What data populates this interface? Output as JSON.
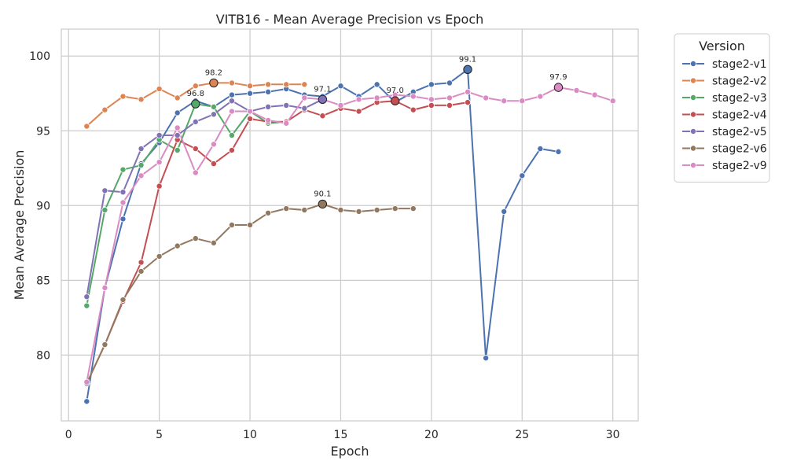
{
  "chart_data": {
    "type": "line",
    "title": "VITB16 - Mean Average Precision vs Epoch",
    "xlabel": "Epoch",
    "ylabel": "Mean Average Precision",
    "xlim": [
      -0.4,
      31.4
    ],
    "ylim": [
      75.6,
      101.8
    ],
    "xticks": [
      0,
      5,
      10,
      15,
      20,
      25,
      30
    ],
    "yticks": [
      80,
      85,
      90,
      95,
      100
    ],
    "grid": true,
    "legend_title": "Version",
    "legend_position": "outside-right",
    "series": [
      {
        "name": "stage2-v1",
        "color": "#4c72b0",
        "x": [
          1,
          2,
          3,
          4,
          5,
          6,
          7,
          8,
          9,
          10,
          11,
          12,
          13,
          14,
          15,
          16,
          17,
          18,
          19,
          20,
          21,
          22,
          23,
          24,
          25,
          26,
          27
        ],
        "y": [
          76.9,
          84.5,
          89.1,
          92.8,
          94.2,
          96.2,
          97.0,
          96.6,
          97.4,
          97.5,
          97.6,
          97.8,
          97.4,
          97.3,
          98.0,
          97.3,
          98.1,
          96.9,
          97.6,
          98.1,
          98.2,
          99.1,
          79.8,
          89.6,
          92.0,
          93.8,
          93.6
        ],
        "best": {
          "x": 22,
          "y": 99.1,
          "label": "99.1"
        }
      },
      {
        "name": "stage2-v2",
        "color": "#dd8452",
        "x": [
          1,
          2,
          3,
          4,
          5,
          6,
          7,
          8,
          9,
          10,
          11,
          12,
          13
        ],
        "y": [
          95.3,
          96.4,
          97.3,
          97.1,
          97.8,
          97.2,
          98.0,
          98.2,
          98.2,
          98.0,
          98.1,
          98.1,
          98.1
        ],
        "best": {
          "x": 8,
          "y": 98.2,
          "label": "98.2"
        }
      },
      {
        "name": "stage2-v3",
        "color": "#55a868",
        "x": [
          1,
          2,
          3,
          4,
          5,
          6,
          7,
          8,
          9,
          10,
          11,
          12
        ],
        "y": [
          83.3,
          89.7,
          92.4,
          92.7,
          94.4,
          93.7,
          96.8,
          96.6,
          94.7,
          96.3,
          95.5,
          95.6
        ],
        "best": {
          "x": 7,
          "y": 96.8,
          "label": "96.8"
        }
      },
      {
        "name": "stage2-v4",
        "color": "#c44e52",
        "x": [
          1,
          2,
          3,
          4,
          5,
          6,
          7,
          8,
          9,
          10,
          11,
          12,
          13,
          14,
          15,
          16,
          17,
          18,
          19,
          20,
          21,
          22
        ],
        "y": [
          78.1,
          80.7,
          83.6,
          86.2,
          91.3,
          94.4,
          93.8,
          92.8,
          93.7,
          95.8,
          95.6,
          95.6,
          96.4,
          96.0,
          96.5,
          96.3,
          96.9,
          97.0,
          96.4,
          96.7,
          96.7,
          96.9
        ],
        "best": {
          "x": 18,
          "y": 97.0,
          "label": "97.0"
        }
      },
      {
        "name": "stage2-v5",
        "color": "#8172b3",
        "x": [
          1,
          2,
          3,
          4,
          5,
          6,
          7,
          8,
          9,
          10,
          11,
          12,
          13,
          14
        ],
        "y": [
          83.9,
          91.0,
          90.9,
          93.8,
          94.7,
          94.7,
          95.6,
          96.1,
          97.0,
          96.3,
          96.6,
          96.7,
          96.5,
          97.1
        ],
        "best": {
          "x": 14,
          "y": 97.1,
          "label": "97.1"
        }
      },
      {
        "name": "stage2-v6",
        "color": "#937860",
        "x": [
          1,
          2,
          3,
          4,
          5,
          6,
          7,
          8,
          9,
          10,
          11,
          12,
          13,
          14,
          15,
          16,
          17,
          18,
          19
        ],
        "y": [
          78.1,
          80.7,
          83.7,
          85.6,
          86.6,
          87.3,
          87.8,
          87.5,
          88.7,
          88.7,
          89.5,
          89.8,
          89.7,
          90.1,
          89.7,
          89.6,
          89.7,
          89.8,
          89.8
        ],
        "best": {
          "x": 14,
          "y": 90.1,
          "label": "90.1"
        }
      },
      {
        "name": "stage2-v9",
        "color": "#da8bc3",
        "x": [
          1,
          2,
          3,
          4,
          5,
          6,
          7,
          8,
          9,
          10,
          11,
          12,
          13,
          14,
          15,
          16,
          17,
          18,
          19,
          20,
          21,
          22,
          23,
          24,
          25,
          26,
          27,
          28,
          29,
          30
        ],
        "y": [
          78.2,
          84.5,
          90.2,
          92.0,
          92.9,
          95.2,
          92.2,
          94.1,
          96.3,
          96.3,
          95.7,
          95.5,
          97.2,
          97.1,
          96.7,
          97.1,
          97.2,
          97.4,
          97.3,
          97.1,
          97.2,
          97.6,
          97.2,
          97.0,
          97.0,
          97.3,
          97.9,
          97.7,
          97.4,
          97.0
        ],
        "best": {
          "x": 27,
          "y": 97.9,
          "label": "97.9"
        }
      }
    ]
  }
}
